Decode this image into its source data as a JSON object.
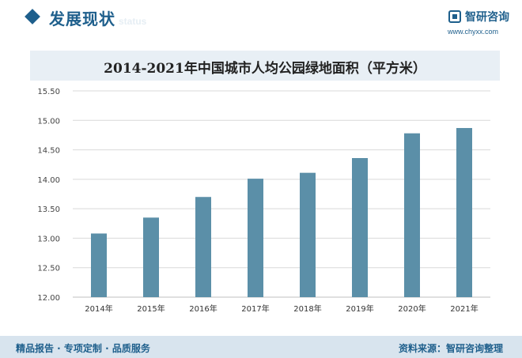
{
  "header": {
    "section_title": "发展现状",
    "section_sub": "status",
    "logo_name": "智研咨询",
    "logo_url": "www.chyxx.com"
  },
  "footer": {
    "left_text": "精品报告 · 专项定制 · 品质服务",
    "source_text": "资料来源：智研咨询整理"
  },
  "colors": {
    "brand": "#1e5f8c",
    "bar": "#5b8fa8",
    "band": "#e8eff5"
  },
  "chart_data": {
    "type": "bar",
    "title": "2014-2021年中国城市人均公园绿地面积（平方米）",
    "categories": [
      "2014年",
      "2015年",
      "2016年",
      "2017年",
      "2018年",
      "2019年",
      "2020年",
      "2021年"
    ],
    "values": [
      13.08,
      13.35,
      13.7,
      14.01,
      14.11,
      14.36,
      14.78,
      14.87
    ],
    "yticks": [
      "12.00",
      "12.50",
      "13.00",
      "13.50",
      "14.00",
      "14.50",
      "15.00",
      "15.50"
    ],
    "ylim": [
      12.0,
      15.5
    ],
    "grid": true,
    "legend": "none"
  }
}
